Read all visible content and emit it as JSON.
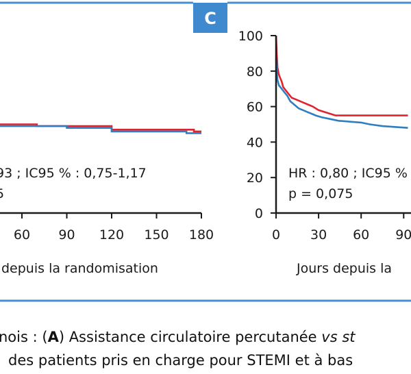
{
  "colors": {
    "frame": "#4a8fd0",
    "badge_bg": "#3f89cf",
    "badge_text": "#ffffff",
    "series_red": "#e0232e",
    "series_blue": "#2f7ec2",
    "axis": "#1a1a1a"
  },
  "caption": {
    "line1_prefix": "nois : (",
    "line1_letter": "A",
    "line1_main": ") Assistance circulatoire percutanée ",
    "line1_italic": "vs st",
    "line2": "des patients pris en charge pour STEMI et à bas"
  },
  "chart_data": [
    {
      "panel": "B",
      "type": "line",
      "xlabel": "depuis la randomisation",
      "x_ticks": [
        60,
        90,
        120,
        150,
        180
      ],
      "annotation": [
        "93 ; IC95 % : 0,75-1,17",
        "5"
      ],
      "series": [
        {
          "color": "series_red",
          "points": [
            [
              0,
              52
            ],
            [
              14,
              52
            ],
            [
              14,
              51
            ],
            [
              30,
              51
            ],
            [
              30,
              50
            ],
            [
              70,
              50
            ],
            [
              70,
              49
            ],
            [
              120,
              49
            ],
            [
              120,
              47
            ],
            [
              175,
              47
            ],
            [
              175,
              46
            ],
            [
              180,
              46
            ]
          ]
        },
        {
          "color": "series_blue",
          "points": [
            [
              0,
              51
            ],
            [
              14,
              51
            ],
            [
              14,
              50
            ],
            [
              30,
              50
            ],
            [
              30,
              49
            ],
            [
              90,
              49
            ],
            [
              90,
              48
            ],
            [
              120,
              48
            ],
            [
              120,
              46
            ],
            [
              170,
              46
            ],
            [
              170,
              45
            ],
            [
              180,
              45
            ]
          ]
        }
      ]
    },
    {
      "panel": "C",
      "badge": "C",
      "type": "line",
      "xlabel": "Jours depuis la",
      "x_ticks": [
        0,
        30,
        60,
        90
      ],
      "y_ticks": [
        0,
        20,
        40,
        60,
        80,
        100
      ],
      "ylim": [
        0,
        100
      ],
      "annotation": [
        "HR : 0,80 ; IC95 %",
        "p = 0,075"
      ],
      "series": [
        {
          "color": "series_red",
          "points": [
            [
              0,
              100
            ],
            [
              0.5,
              90
            ],
            [
              1,
              82
            ],
            [
              2,
              78
            ],
            [
              3,
              76
            ],
            [
              4,
              74
            ],
            [
              5,
              71
            ],
            [
              7,
              69
            ],
            [
              9,
              67
            ],
            [
              11,
              65
            ],
            [
              14,
              64
            ],
            [
              17,
              63
            ],
            [
              20,
              62
            ],
            [
              23,
              61
            ],
            [
              26,
              60
            ],
            [
              30,
              58
            ],
            [
              34,
              57
            ],
            [
              38,
              56
            ],
            [
              42,
              55
            ],
            [
              60,
              55
            ],
            [
              93,
              55
            ]
          ]
        },
        {
          "color": "series_blue",
          "points": [
            [
              0,
              87
            ],
            [
              0.5,
              80
            ],
            [
              1,
              75
            ],
            [
              2,
              72
            ],
            [
              4,
              70
            ],
            [
              6,
              68
            ],
            [
              8,
              66
            ],
            [
              10,
              63
            ],
            [
              13,
              61
            ],
            [
              16,
              59
            ],
            [
              19,
              58
            ],
            [
              22,
              57
            ],
            [
              25,
              56
            ],
            [
              28,
              55
            ],
            [
              32,
              54
            ],
            [
              38,
              53
            ],
            [
              44,
              52
            ],
            [
              60,
              51
            ],
            [
              66,
              50
            ],
            [
              75,
              49
            ],
            [
              93,
              48
            ]
          ]
        }
      ]
    }
  ]
}
